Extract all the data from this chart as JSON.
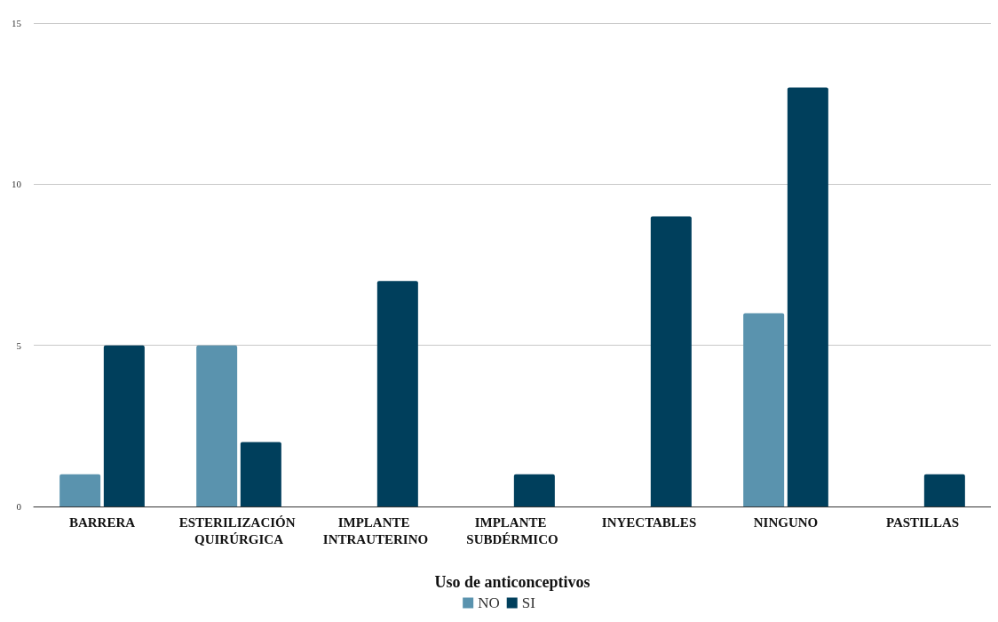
{
  "chart_data": {
    "type": "bar",
    "xlabel": "Uso de anticonceptivos",
    "categories": [
      "BARRERA",
      "ESTERILIZACIÓN QUIRÚRGICA",
      "IMPLANTE INTRAUTERINO",
      "IMPLANTE SUBDÉRMICO",
      "INYECTABLES",
      "NINGUNO",
      "PASTILLAS"
    ],
    "series": [
      {
        "name": "NO",
        "color": "#5a93ae",
        "values": [
          1,
          5,
          null,
          null,
          null,
          6,
          null
        ]
      },
      {
        "name": "SI",
        "color": "#003f5c",
        "values": [
          5,
          2,
          7,
          1,
          9,
          13,
          1
        ]
      }
    ],
    "ylim": [
      0,
      15
    ],
    "yticks": [
      0,
      5,
      10,
      15
    ],
    "grid": "y",
    "legend": "bottom"
  }
}
